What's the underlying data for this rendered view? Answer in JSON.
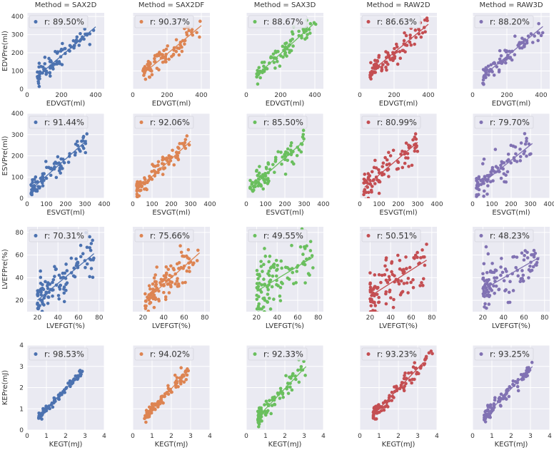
{
  "figure": {
    "background": "#ffffff",
    "panel_background": "#eaeaf2"
  },
  "methods": [
    {
      "title": "Method = SAX2D",
      "color": "#4c72b0"
    },
    {
      "title": "Method = SAX2DF",
      "color": "#dd8452"
    },
    {
      "title": "Method = SAX3D",
      "color": "#6abf5e"
    },
    {
      "title": "Method = RAW2D",
      "color": "#c44e52"
    },
    {
      "title": "Method = RAW3D",
      "color": "#8172b3"
    }
  ],
  "rows": [
    {
      "xlabel": "EDVGT(ml)",
      "ylabel": "EDVPre(ml)",
      "xlim": [
        0,
        450
      ],
      "ylim": [
        0,
        420
      ],
      "xticks": [
        0,
        200,
        400
      ],
      "xtick_labels": [
        "0",
        "200",
        "400"
      ],
      "yticks": [
        0,
        100,
        200,
        300,
        400
      ],
      "ytick_labels": [
        "0",
        "100",
        "200",
        "300",
        "400"
      ]
    },
    {
      "xlabel": "ESVGT(ml)",
      "ylabel": "ESVPre(ml)",
      "xlim": [
        0,
        400
      ],
      "ylim": [
        0,
        400
      ],
      "xticks": [
        0,
        100,
        200,
        300,
        400
      ],
      "xtick_labels": [
        "0",
        "100",
        "200",
        "300",
        "400"
      ],
      "yticks": [
        0,
        100,
        200,
        300,
        400
      ],
      "ytick_labels": [
        "0",
        "100",
        "200",
        "300",
        "400"
      ]
    },
    {
      "xlabel": "LVEFGT(%)",
      "ylabel": "LVEFPre(%)",
      "xlim": [
        10,
        85
      ],
      "ylim": [
        10,
        85
      ],
      "xticks": [
        20,
        40,
        60,
        80
      ],
      "xtick_labels": [
        "20",
        "40",
        "60",
        "80"
      ],
      "yticks": [
        20,
        40,
        60,
        80
      ],
      "ytick_labels": [
        "20",
        "40",
        "60",
        "80"
      ]
    },
    {
      "xlabel": "KEGT(mJ)",
      "ylabel": "KEPre(mJ)",
      "xlim": [
        0,
        4
      ],
      "ylim": [
        0,
        4
      ],
      "xticks": [
        0,
        1,
        2,
        3,
        4
      ],
      "xtick_labels": [
        "0",
        "1",
        "2",
        "3",
        "4"
      ],
      "yticks": [
        0,
        1,
        2,
        3,
        4
      ],
      "ytick_labels": [
        "0",
        "1",
        "2",
        "3",
        "4"
      ]
    }
  ],
  "chart_data": {
    "type": "scatter",
    "layout": "faceted grid: 4 rows (metrics) x 5 columns (methods), shared y-axis per row",
    "legend_position": "upper-left",
    "grid": true,
    "panels": [
      {
        "row": 0,
        "col": 0,
        "r_label": "r: 89.50%",
        "r": 0.895,
        "n": 85,
        "slope": 0.8,
        "intercept": 23,
        "noise": 27,
        "x_min": 60,
        "x_max": 400,
        "fit_x": [
          65,
          400
        ],
        "seed": 101
      },
      {
        "row": 0,
        "col": 1,
        "r_label": "r: 90.37%",
        "r": 0.9037,
        "n": 85,
        "slope": 0.78,
        "intercept": 38,
        "noise": 26,
        "x_min": 60,
        "x_max": 400,
        "fit_x": [
          75,
          400
        ],
        "seed": 102
      },
      {
        "row": 0,
        "col": 2,
        "r_label": "r: 88.67%",
        "r": 0.8867,
        "n": 85,
        "slope": 0.85,
        "intercept": 25,
        "noise": 30,
        "x_min": 60,
        "x_max": 410,
        "fit_x": [
          70,
          400
        ],
        "seed": 103
      },
      {
        "row": 0,
        "col": 3,
        "r_label": "r: 86.63%",
        "r": 0.8663,
        "n": 85,
        "slope": 0.78,
        "intercept": 45,
        "noise": 34,
        "x_min": 60,
        "x_max": 400,
        "fit_x": [
          80,
          400
        ],
        "seed": 104
      },
      {
        "row": 0,
        "col": 4,
        "r_label": "r: 88.20%",
        "r": 0.882,
        "n": 85,
        "slope": 0.78,
        "intercept": 25,
        "noise": 28,
        "x_min": 60,
        "x_max": 410,
        "fit_x": [
          75,
          410
        ],
        "seed": 105
      },
      {
        "row": 1,
        "col": 0,
        "r_label": "r: 91.44%",
        "r": 0.9144,
        "n": 90,
        "slope": 0.8,
        "intercept": 25,
        "noise": 22,
        "x_min": 20,
        "x_max": 310,
        "fit_x": [
          25,
          310
        ],
        "seed": 201
      },
      {
        "row": 1,
        "col": 1,
        "r_label": "r: 92.06%",
        "r": 0.9206,
        "n": 90,
        "slope": 0.83,
        "intercept": 20,
        "noise": 22,
        "x_min": 20,
        "x_max": 300,
        "fit_x": [
          25,
          300
        ],
        "seed": 202
      },
      {
        "row": 1,
        "col": 2,
        "r_label": "r: 85.50%",
        "r": 0.855,
        "n": 90,
        "slope": 0.8,
        "intercept": 30,
        "noise": 30,
        "x_min": 20,
        "x_max": 300,
        "fit_x": [
          25,
          300
        ],
        "seed": 203
      },
      {
        "row": 1,
        "col": 3,
        "r_label": "r: 80.99%",
        "r": 0.8099,
        "n": 90,
        "slope": 0.77,
        "intercept": 33,
        "noise": 38,
        "x_min": 20,
        "x_max": 300,
        "fit_x": [
          25,
          300
        ],
        "seed": 204
      },
      {
        "row": 1,
        "col": 4,
        "r_label": "r: 79.70%",
        "r": 0.797,
        "n": 90,
        "slope": 0.72,
        "intercept": 35,
        "noise": 36,
        "x_min": 20,
        "x_max": 310,
        "fit_x": [
          25,
          310
        ],
        "seed": 205
      },
      {
        "row": 2,
        "col": 0,
        "r_label": "r: 70.31%",
        "r": 0.7031,
        "n": 110,
        "slope": 0.75,
        "intercept": 5,
        "noise": 8.5,
        "x_min": 20,
        "x_max": 75,
        "fit_x": [
          20,
          75
        ],
        "seed": 301
      },
      {
        "row": 2,
        "col": 1,
        "r_label": "r: 75.66%",
        "r": 0.7566,
        "n": 110,
        "slope": 0.8,
        "intercept": 2,
        "noise": 7.5,
        "x_min": 22,
        "x_max": 75,
        "fit_x": [
          22,
          75
        ],
        "seed": 302
      },
      {
        "row": 2,
        "col": 2,
        "r_label": "r: 49.55%",
        "r": 0.4955,
        "n": 110,
        "slope": 0.55,
        "intercept": 17,
        "noise": 12,
        "x_min": 20,
        "x_max": 75,
        "fit_x": [
          20,
          75
        ],
        "seed": 303
      },
      {
        "row": 2,
        "col": 3,
        "r_label": "r: 50.51%",
        "r": 0.5051,
        "n": 110,
        "slope": 0.58,
        "intercept": 12,
        "noise": 11,
        "x_min": 20,
        "x_max": 75,
        "fit_x": [
          20,
          75
        ],
        "seed": 304
      },
      {
        "row": 2,
        "col": 4,
        "r_label": "r: 48.23%",
        "r": 0.4823,
        "n": 110,
        "slope": 0.52,
        "intercept": 19,
        "noise": 11,
        "x_min": 20,
        "x_max": 75,
        "fit_x": [
          20,
          75
        ],
        "seed": 305
      },
      {
        "row": 3,
        "col": 0,
        "r_label": "r: 98.53%",
        "r": 0.9853,
        "n": 90,
        "slope": 0.95,
        "intercept": 0.05,
        "noise": 0.09,
        "x_min": 0.6,
        "x_max": 2.9,
        "fit_x": [
          0.6,
          2.9
        ],
        "seed": 401
      },
      {
        "row": 3,
        "col": 1,
        "r_label": "r: 94.02%",
        "r": 0.9402,
        "n": 90,
        "slope": 0.95,
        "intercept": 0.05,
        "noise": 0.17,
        "x_min": 0.6,
        "x_max": 2.9,
        "fit_x": [
          0.6,
          2.9
        ],
        "seed": 402
      },
      {
        "row": 3,
        "col": 2,
        "r_label": "r: 92.33%",
        "r": 0.9233,
        "n": 90,
        "slope": 0.95,
        "intercept": 0.05,
        "noise": 0.2,
        "x_min": 0.6,
        "x_max": 3.1,
        "fit_x": [
          0.6,
          3.1
        ],
        "seed": 403
      },
      {
        "row": 3,
        "col": 3,
        "r_label": "r: 93.23%",
        "r": 0.9323,
        "n": 90,
        "slope": 0.95,
        "intercept": 0.05,
        "noise": 0.2,
        "x_min": 0.7,
        "x_max": 3.8,
        "fit_x": [
          0.7,
          3.3
        ],
        "seed": 404
      },
      {
        "row": 3,
        "col": 4,
        "r_label": "r: 93.25%",
        "r": 0.9325,
        "n": 90,
        "slope": 0.95,
        "intercept": 0.05,
        "noise": 0.18,
        "x_min": 0.6,
        "x_max": 3.1,
        "fit_x": [
          0.7,
          3.1
        ],
        "seed": 405
      }
    ]
  }
}
